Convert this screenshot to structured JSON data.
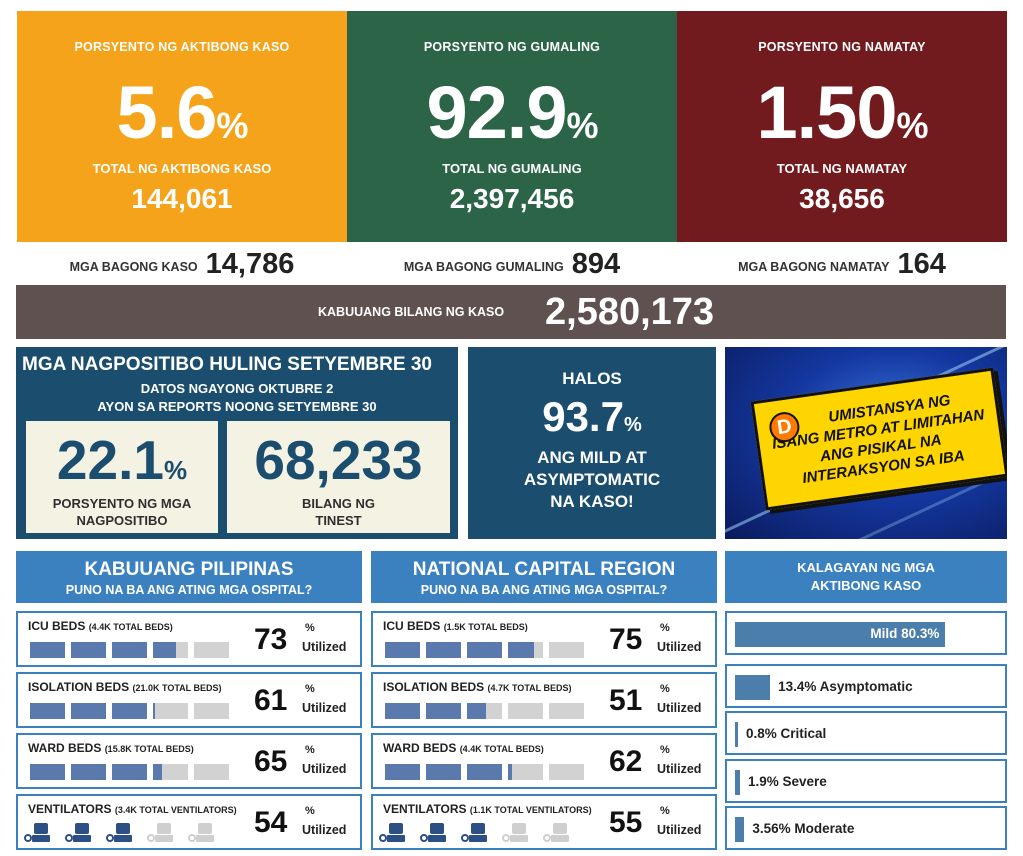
{
  "active": {
    "pct_label": "PORSYENTO NG AKTIBONG KASO",
    "pct": "5.6",
    "pct_sign": "%",
    "total_label": "TOTAL NG AKTIBONG KASO",
    "total": "144,061",
    "new_label": "MGA BAGONG KASO",
    "new": "14,786",
    "color": "#f5a31a"
  },
  "recovered": {
    "pct_label": "PORSYENTO NG GUMALING",
    "pct": "92.9",
    "pct_sign": "%",
    "total_label": "TOTAL NG GUMALING",
    "total": "2,397,456",
    "new_label": "MGA BAGONG GUMALING",
    "new": "894",
    "color": "#2c6448"
  },
  "deaths": {
    "pct_label": "PORSYENTO NG NAMATAY",
    "pct": "1.50",
    "pct_sign": "%",
    "total_label": "TOTAL NG NAMATAY",
    "total": "38,656",
    "new_label": "MGA BAGONG NAMATAY",
    "new": "164",
    "color": "#711b1f"
  },
  "total_cases": {
    "label": "KABUUANG BILANG NG KASO",
    "value": "2,580,173"
  },
  "positivity": {
    "heading": "MGA NAGPOSITIBO HULING SETYEMBRE 30",
    "sub1": "DATOS NGAYONG OKTUBRE 2",
    "sub2": "AYON SA REPORTS NOONG SETYEMBRE 30",
    "rate": "22.1",
    "rate_sign": "%",
    "rate_caption1": "PORSYENTO NG MGA",
    "rate_caption2": "NAGPOSITIBO",
    "tested": "68,233",
    "tested_caption1": "BILANG NG",
    "tested_caption2": "TINEST"
  },
  "mild": {
    "line1": "HALOS",
    "pct": "93.7",
    "pct_sign": "%",
    "line2": "ANG MILD AT",
    "line3": "ASYMPTOMATIC",
    "line4": "NA KASO!"
  },
  "ad": {
    "initial": "D",
    "line1": "UMISTANSYA NG",
    "line2": "ISANG METRO AT LIMITAHAN",
    "line3": "ANG PISIKAL NA",
    "line4": "INTERAKSYON SA IBA"
  },
  "ph": {
    "title": "KABUUANG PILIPINAS",
    "subtitle": "PUNO NA BA ANG ATING MGA OSPITAL?",
    "rows": [
      {
        "name": "ICU BEDS",
        "total": "(4.4K TOTAL BEDS)",
        "value": "73",
        "pct": 73
      },
      {
        "name": "ISOLATION BEDS",
        "total": "(21.0K TOTAL BEDS)",
        "value": "61",
        "pct": 61
      },
      {
        "name": "WARD BEDS",
        "total": "(15.8K TOTAL BEDS)",
        "value": "65",
        "pct": 65
      },
      {
        "name": "VENTILATORS",
        "total": "(3.4K TOTAL VENTILATORS)",
        "value": "54",
        "pct": 54
      }
    ]
  },
  "ncr": {
    "title": "NATIONAL CAPITAL REGION",
    "subtitle": "PUNO NA BA ANG ATING MGA OSPITAL?",
    "rows": [
      {
        "name": "ICU BEDS",
        "total": "(1.5K TOTAL BEDS)",
        "value": "75",
        "pct": 75
      },
      {
        "name": "ISOLATION BEDS",
        "total": "(4.7K TOTAL BEDS)",
        "value": "51",
        "pct": 51
      },
      {
        "name": "WARD BEDS",
        "total": "(4.4K TOTAL BEDS)",
        "value": "62",
        "pct": 62
      },
      {
        "name": "VENTILATORS",
        "total": "(1.1K TOTAL VENTILATORS)",
        "value": "55",
        "pct": 55
      }
    ]
  },
  "util_sign": "%",
  "util_label": "Utilized",
  "conditions": {
    "title1": "KALAGAYAN NG MGA",
    "title2": "AKTIBONG KASO",
    "rows": [
      {
        "label": "Mild 80.3%",
        "pct": 80.3
      },
      {
        "label": "13.4% Asymptomatic",
        "pct": 13.4
      },
      {
        "label": "0.8% Critical",
        "pct": 0.8
      },
      {
        "label": "1.9% Severe",
        "pct": 1.9
      },
      {
        "label": "3.56% Moderate",
        "pct": 3.56
      }
    ]
  },
  "colors": {
    "bar_fill": "#5a79ad",
    "bar_empty": "#d2d2d2",
    "header_blue": "#3b81c0",
    "navy": "#1b4e6e"
  }
}
